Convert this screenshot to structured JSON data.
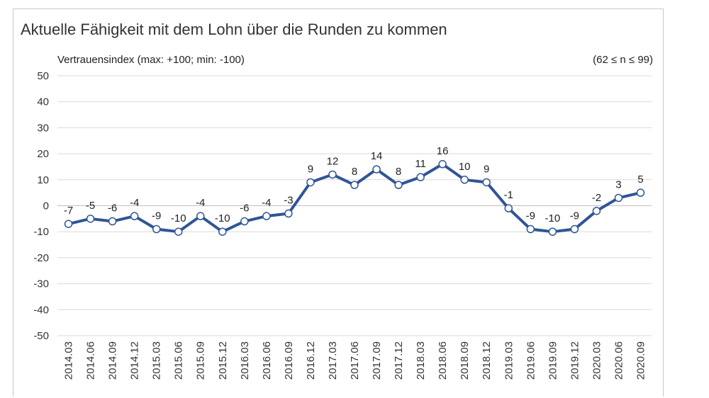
{
  "chart_data": {
    "type": "line",
    "title": "Aktuelle Fähigkeit mit dem Lohn über die Runden zu kommen",
    "ylabel": "Vertrauensindex (max: +100; min: -100)",
    "note": "(62 ≤ n ≤ 99)",
    "ylim": [
      -50,
      50
    ],
    "yticks": [
      "50",
      "40",
      "30",
      "20",
      "10",
      "0",
      "-10",
      "-20",
      "-30",
      "-40",
      "-50"
    ],
    "grid": true,
    "categories": [
      "2014.03",
      "2014.06",
      "2014.09",
      "2014.12",
      "2015.03",
      "2015.06",
      "2015.09",
      "2015.12",
      "2016.03",
      "2016.06",
      "2016.09",
      "2016.12",
      "2017.03",
      "2017.06",
      "2017.09",
      "2017.12",
      "2018.03",
      "2018.06",
      "2018.09",
      "2018.12",
      "2019.03",
      "2019.06",
      "2019.09",
      "2019.12",
      "2020.03",
      "2020.06",
      "2020.09"
    ],
    "values": [
      -7,
      -5,
      -6,
      -4,
      -9,
      -10,
      -4,
      -10,
      -6,
      -4,
      -3,
      9,
      12,
      8,
      14,
      8,
      11,
      16,
      10,
      9,
      -1,
      -9,
      -10,
      -9,
      -2,
      3,
      5
    ],
    "colors": {
      "line": "#2f5597",
      "marker_fill": "#ffffff",
      "grid": "#d9d9d9"
    }
  }
}
